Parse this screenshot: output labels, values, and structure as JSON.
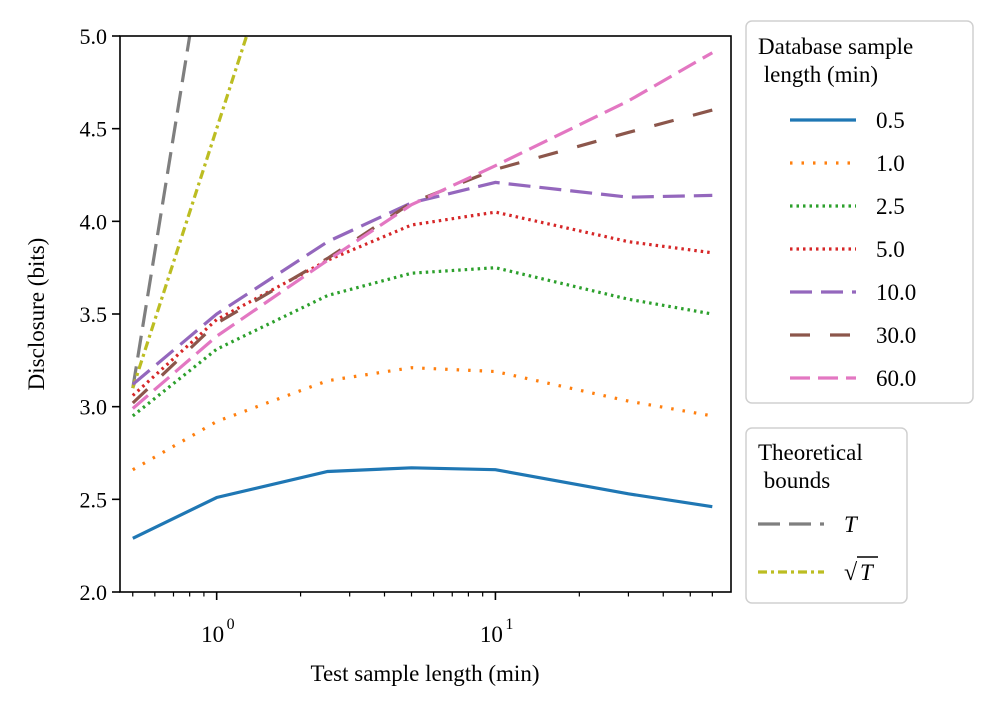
{
  "chart_data": {
    "type": "line",
    "xscale": "log",
    "xlabel": "Test sample length (min)",
    "ylabel": "Disclosure (bits)",
    "xlim": [
      0.45,
      70
    ],
    "ylim": [
      2.0,
      5.0
    ],
    "x_ticks": [
      {
        "value": 1,
        "base": "10",
        "exp": "0"
      },
      {
        "value": 10,
        "base": "10",
        "exp": "1"
      }
    ],
    "y_ticks": [
      "2.0",
      "2.5",
      "3.0",
      "3.5",
      "4.0",
      "4.5",
      "5.0"
    ],
    "x": [
      0.5,
      1.0,
      2.5,
      5.0,
      10.0,
      30.0,
      60.0
    ],
    "legend_title": "Database sample\n length (min)",
    "series": [
      {
        "name": "0.5",
        "color": "#1f77b4",
        "style": "solid",
        "values": [
          2.29,
          2.51,
          2.65,
          2.67,
          2.66,
          2.53,
          2.46
        ]
      },
      {
        "name": "1.0",
        "color": "#ff7f0e",
        "style": "dotted-wide",
        "values": [
          2.66,
          2.92,
          3.14,
          3.21,
          3.19,
          3.03,
          2.95
        ]
      },
      {
        "name": "2.5",
        "color": "#2ca02c",
        "style": "dotted",
        "values": [
          2.95,
          3.31,
          3.6,
          3.72,
          3.75,
          3.58,
          3.5
        ]
      },
      {
        "name": "5.0",
        "color": "#d62728",
        "style": "dotted",
        "values": [
          3.06,
          3.47,
          3.79,
          3.98,
          4.05,
          3.89,
          3.83
        ]
      },
      {
        "name": "10.0",
        "color": "#9467bd",
        "style": "dash-long",
        "values": [
          3.12,
          3.5,
          3.89,
          4.1,
          4.21,
          4.13,
          4.14
        ]
      },
      {
        "name": "30.0",
        "color": "#8c564b",
        "style": "dash-long-gap",
        "values": [
          3.02,
          3.45,
          3.8,
          4.1,
          4.28,
          4.48,
          4.6
        ]
      },
      {
        "name": "60.0",
        "color": "#e377c2",
        "style": "dash-med",
        "values": [
          2.99,
          3.38,
          3.79,
          4.09,
          4.3,
          4.65,
          4.91
        ]
      }
    ],
    "bounds_title": "Theoretical\n bounds",
    "bounds": [
      {
        "name": "T",
        "label_main": "T",
        "color": "#7f7f7f",
        "style": "dash-long",
        "x": [
          0.5,
          0.8
        ],
        "y": [
          3.1,
          5.0
        ]
      },
      {
        "name": "sqrt(T)",
        "label_main": "T",
        "label_prefix": "√",
        "color": "#bcbd22",
        "style": "dashdot",
        "x": [
          0.5,
          1.28
        ],
        "y": [
          3.1,
          5.0
        ]
      }
    ]
  }
}
